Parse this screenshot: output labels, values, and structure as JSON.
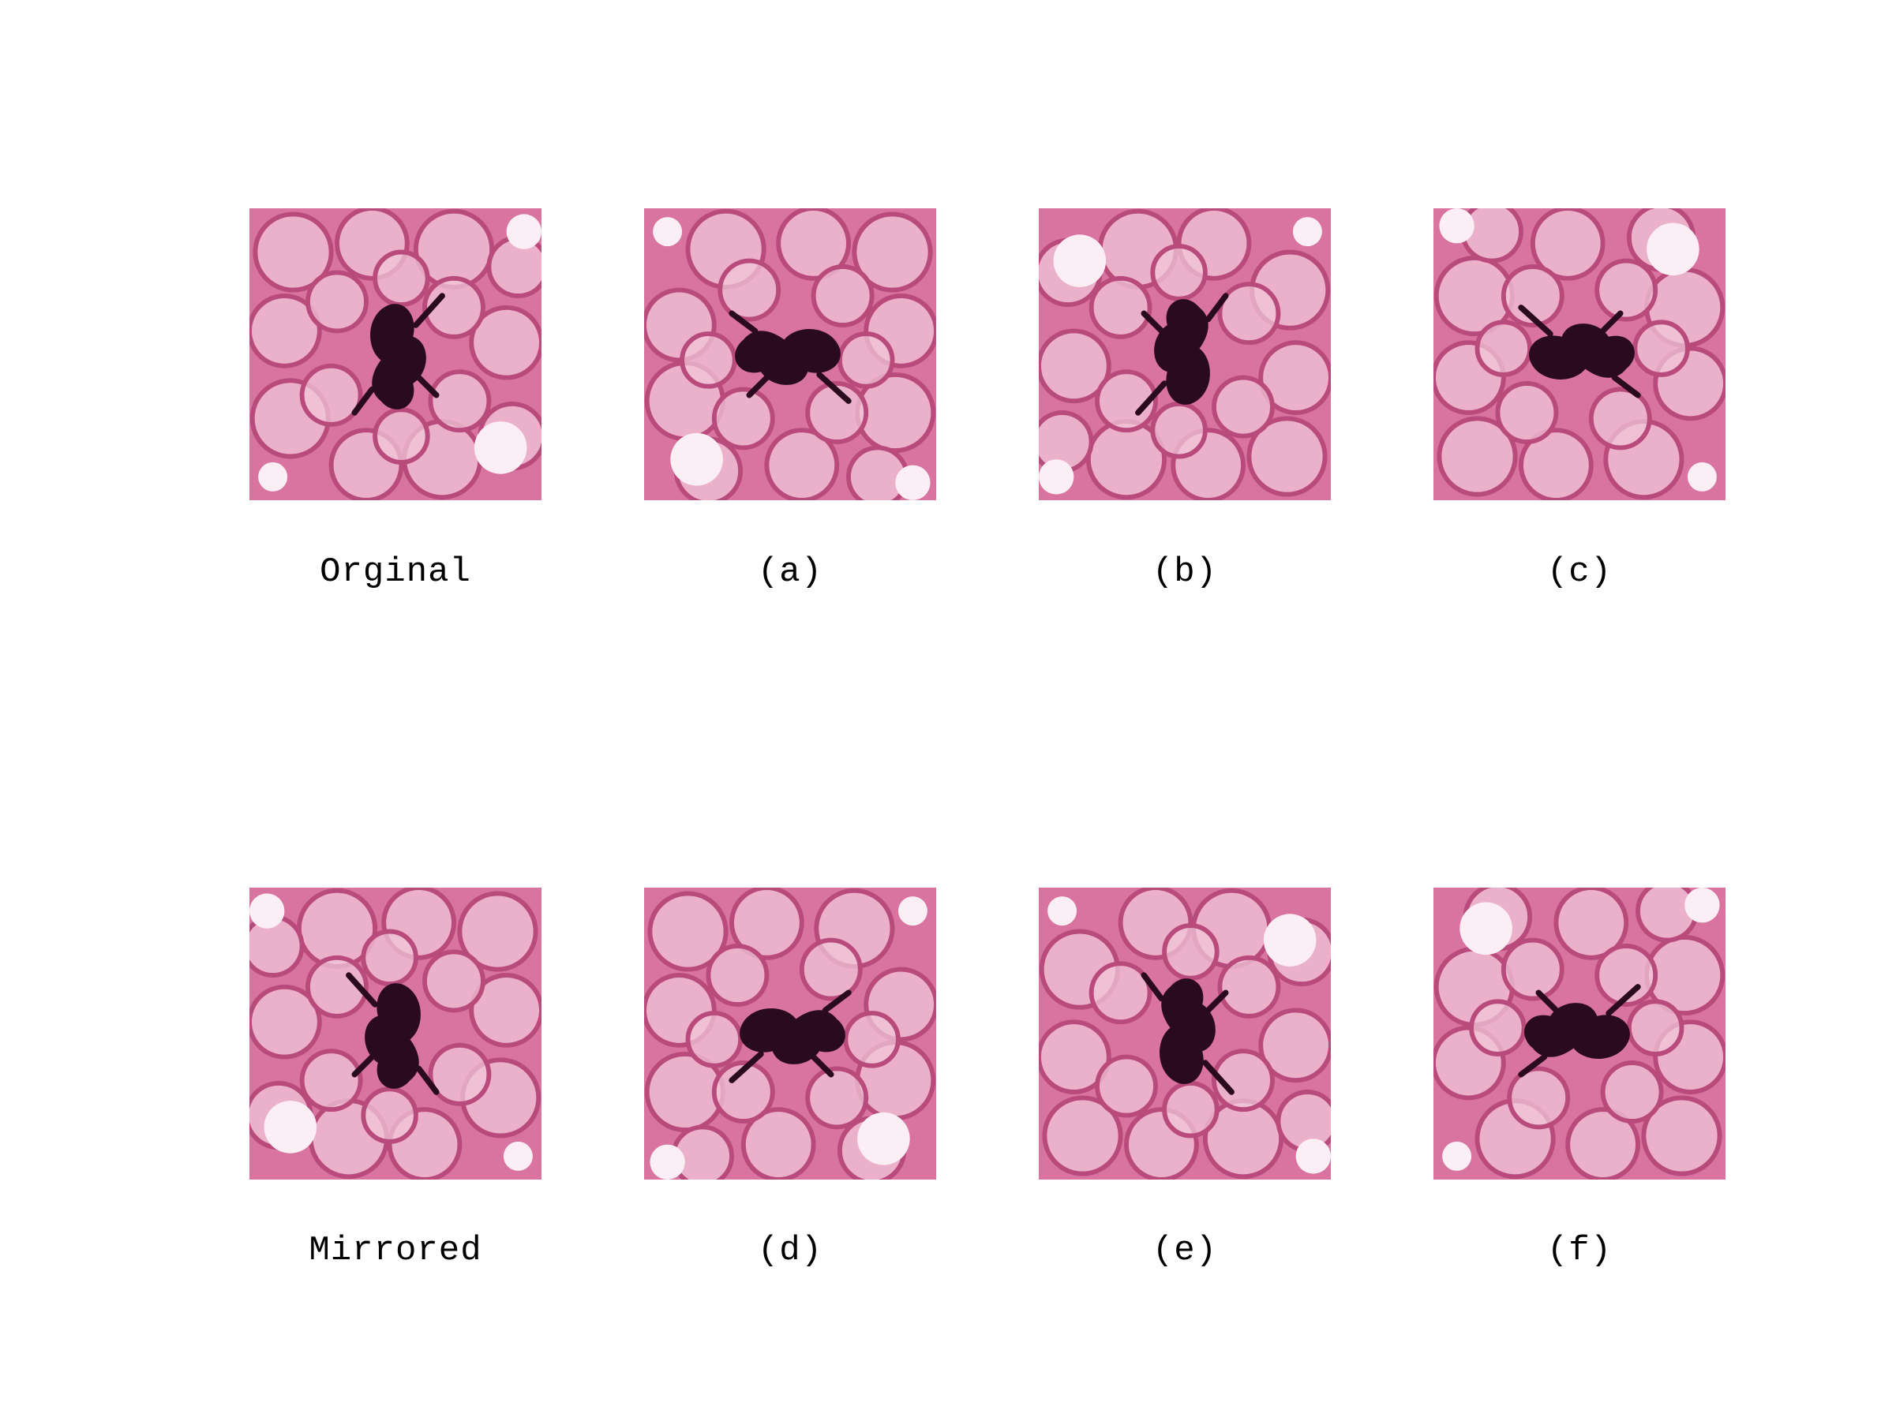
{
  "figure": {
    "captions": [
      "Orginal",
      "(a)",
      "(b)",
      "(c)",
      "Mirrored",
      "(d)",
      "(e)",
      "(f)"
    ],
    "panels": [
      {
        "name": "original-cell-image",
        "rotate": 0,
        "mirror": false
      },
      {
        "name": "rotated-a-cell-image",
        "rotate": 90,
        "mirror": false
      },
      {
        "name": "rotated-b-cell-image",
        "rotate": 180,
        "mirror": false
      },
      {
        "name": "rotated-c-cell-image",
        "rotate": 270,
        "mirror": false
      },
      {
        "name": "mirrored-cell-image",
        "rotate": 0,
        "mirror": true
      },
      {
        "name": "mirrored-d-cell-image",
        "rotate": 90,
        "mirror": true
      },
      {
        "name": "mirrored-e-cell-image",
        "rotate": 180,
        "mirror": true
      },
      {
        "name": "mirrored-f-cell-image",
        "rotate": 270,
        "mirror": true
      }
    ],
    "colors": {
      "tissue": "#d9739f",
      "tissue_light": "#f2c6d8",
      "nucleus": "#2a0a1e",
      "highlight": "#fbeef4"
    }
  }
}
